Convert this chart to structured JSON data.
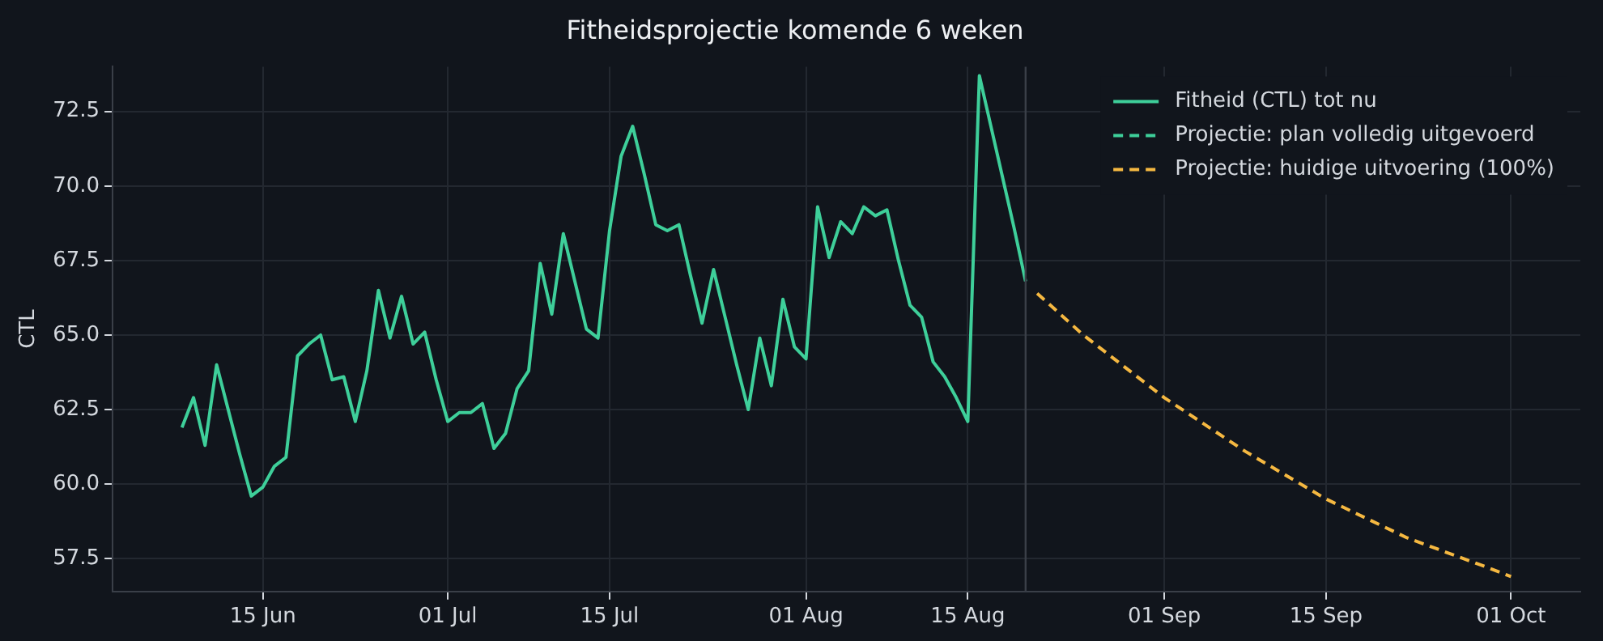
{
  "chart_data": {
    "type": "line",
    "title": "Fitheidsprojectie komende 6 weken",
    "ylabel": "CTL",
    "series": [
      {
        "name": "Fitheid (CTL) tot nu",
        "color": "#3ecf9a",
        "line_style": "solid",
        "x": [
          "--06-08",
          "--06-09",
          "--06-10",
          "--06-11",
          "--06-12",
          "--06-13",
          "--06-14",
          "--06-15",
          "--06-16",
          "--06-17",
          "--06-18",
          "--06-19",
          "--06-20",
          "--06-21",
          "--06-22",
          "--06-23",
          "--06-24",
          "--06-25",
          "--06-26",
          "--06-27",
          "--06-28",
          "--06-29",
          "--06-30",
          "--07-01",
          "--07-02",
          "--07-03",
          "--07-04",
          "--07-05",
          "--07-06",
          "--07-07",
          "--07-08",
          "--07-09",
          "--07-10",
          "--07-11",
          "--07-12",
          "--07-13",
          "--07-14",
          "--07-15",
          "--07-16",
          "--07-17",
          "--07-18",
          "--07-19",
          "--07-20",
          "--07-21",
          "--07-22",
          "--07-23",
          "--07-24",
          "--07-25",
          "--07-26",
          "--07-27",
          "--07-28",
          "--07-29",
          "--07-30",
          "--07-31",
          "--08-01",
          "--08-02",
          "--08-03",
          "--08-04",
          "--08-05",
          "--08-06",
          "--08-07",
          "--08-08",
          "--08-09",
          "--08-10",
          "--08-11",
          "--08-12",
          "--08-13",
          "--08-14",
          "--08-15",
          "--08-16",
          "--08-17",
          "--08-18",
          "--08-19",
          "--08-20"
        ],
        "values": [
          61.9,
          62.9,
          61.3,
          64.0,
          62.5,
          61.0,
          59.6,
          59.9,
          60.6,
          60.9,
          64.3,
          64.7,
          65.0,
          63.5,
          63.6,
          62.1,
          63.8,
          66.5,
          64.9,
          66.3,
          64.7,
          65.1,
          63.5,
          62.1,
          62.4,
          62.4,
          62.7,
          61.2,
          61.7,
          63.2,
          63.8,
          67.4,
          65.7,
          68.4,
          66.8,
          65.2,
          64.9,
          68.5,
          71.0,
          72.0,
          70.4,
          68.7,
          68.5,
          68.7,
          67.0,
          65.4,
          67.2,
          65.6,
          64.0,
          62.5,
          64.9,
          63.3,
          66.2,
          64.6,
          64.2,
          69.3,
          67.6,
          68.8,
          68.4,
          69.3,
          69.0,
          69.2,
          67.5,
          66.0,
          65.6,
          64.1,
          63.6,
          62.9,
          62.1,
          73.7,
          72.0,
          70.3,
          68.6,
          66.8
        ]
      },
      {
        "name": "Projectie: plan volledig uitgevoerd",
        "color": "#3ecf9a",
        "line_style": "dashed"
      },
      {
        "name": "Projectie: huidige uitvoering (100%)",
        "color": "#f5b841",
        "line_style": "dashed",
        "x": [
          "--08-21",
          "--08-25",
          "--09-01",
          "--09-08",
          "--09-15",
          "--09-22",
          "--09-29",
          "--10-01"
        ],
        "values": [
          66.4,
          65.0,
          62.9,
          61.1,
          59.5,
          58.2,
          57.2,
          56.9
        ]
      }
    ],
    "xlim": [
      "--06-02",
      "--10-07"
    ],
    "xticks": [
      {
        "value": "--06-15",
        "label": "15 Jun"
      },
      {
        "value": "--07-01",
        "label": "01 Jul"
      },
      {
        "value": "--07-15",
        "label": "15 Jul"
      },
      {
        "value": "--08-01",
        "label": "01 Aug"
      },
      {
        "value": "--08-15",
        "label": "15 Aug"
      },
      {
        "value": "--09-01",
        "label": "01 Sep"
      },
      {
        "value": "--09-15",
        "label": "15 Sep"
      },
      {
        "value": "--10-01",
        "label": "01 Oct"
      }
    ],
    "ylim": [
      56.4,
      74.0
    ],
    "yticks": [
      57.5,
      {
        "value": 60,
        "label": "60.0"
      },
      62.5,
      {
        "value": 65,
        "label": "65.0"
      },
      67.5,
      {
        "value": 70,
        "label": "70.0"
      },
      72.5
    ],
    "ref_lines": [
      {
        "axis": "x",
        "value": "--08-20",
        "color": "#3a3f48"
      }
    ],
    "grid": true,
    "legend": "top right",
    "marker": "none"
  }
}
